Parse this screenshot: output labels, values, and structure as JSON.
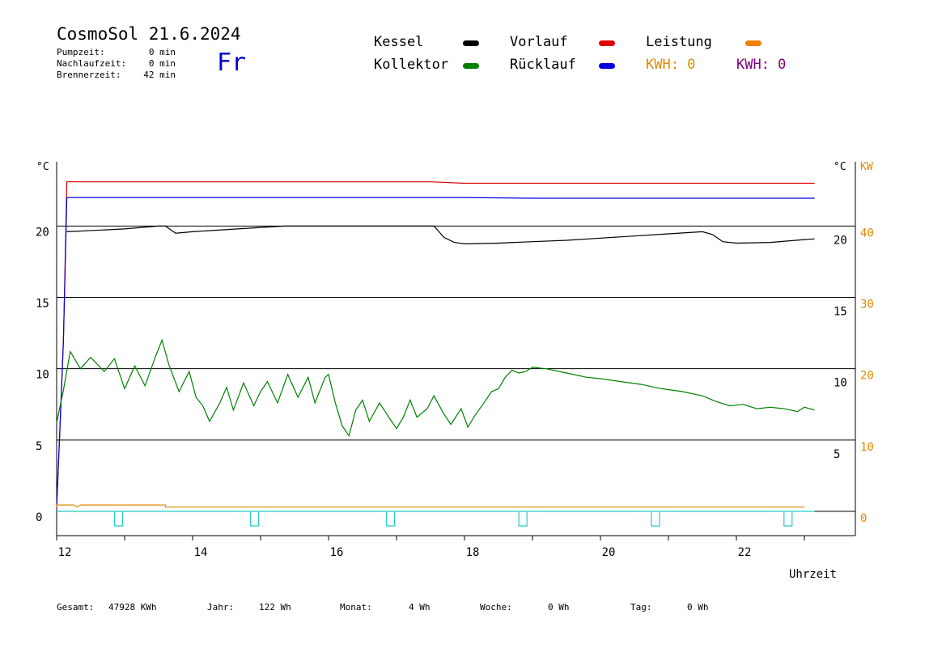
{
  "header": {
    "title": "CosmoSol 21.6.2024",
    "weekday": "Fr",
    "stats": [
      {
        "label": "Pumpzeit:",
        "value": "0 min"
      },
      {
        "label": "Nachlaufzeit:",
        "value": "0 min"
      },
      {
        "label": "Brennerzeit:",
        "value": "42 min"
      }
    ]
  },
  "legend": {
    "kessel": {
      "label": "Kessel",
      "color": "#000000"
    },
    "kollektor": {
      "label": "Kollektor",
      "color": "#008000"
    },
    "vorlauf": {
      "label": "Vorlauf",
      "color": "#e00000"
    },
    "ruecklauf": {
      "label": "Rücklauf",
      "color": "#0000e0"
    },
    "leistung": {
      "label": "Leistung",
      "color": "#f08000"
    },
    "kwh_orange": {
      "label": "KWH: 0",
      "color": "#e08a00"
    },
    "kwh_purple": {
      "label": "KWH: 0",
      "color": "#800080"
    }
  },
  "footer": [
    {
      "label": "Gesamt:",
      "value": "47928 KWh"
    },
    {
      "label": "Jahr:",
      "value": "122 Wh"
    },
    {
      "label": "Monat:",
      "value": "4 Wh"
    },
    {
      "label": "Woche:",
      "value": "0 Wh"
    },
    {
      "label": "Tag:",
      "value": "0 Wh"
    }
  ],
  "chart_data": {
    "type": "line",
    "xlabel": "Uhrzeit",
    "left_unit": "°C",
    "right_unit": "°C",
    "power_unit": "KW",
    "xlim": [
      12,
      23.75
    ],
    "ylim": [
      -1.7,
      24.5
    ],
    "x_ticks": [
      "12",
      "14",
      "16",
      "18",
      "20",
      "22"
    ],
    "y_ticks_left": [
      "0",
      "5",
      "10",
      "15",
      "20"
    ],
    "y_ticks_right": [
      "5",
      "10",
      "15",
      "20"
    ],
    "y_ticks_power": [
      "0",
      "10",
      "20",
      "30",
      "40"
    ],
    "grid": true,
    "series": [
      {
        "name": "Vorlauf",
        "color": "#e00000",
        "points": [
          [
            12.0,
            0.3
          ],
          [
            12.05,
            6
          ],
          [
            12.1,
            12
          ],
          [
            12.15,
            23.1
          ],
          [
            14,
            23.1
          ],
          [
            16,
            23.1
          ],
          [
            17.5,
            23.1
          ],
          [
            18,
            23.0
          ],
          [
            19,
            23.0
          ],
          [
            20,
            23.0
          ],
          [
            21,
            23.0
          ],
          [
            22,
            23.0
          ],
          [
            23.15,
            23.0
          ]
        ]
      },
      {
        "name": "Rücklauf",
        "color": "#0000e0",
        "points": [
          [
            12.0,
            0.3
          ],
          [
            12.05,
            6
          ],
          [
            12.1,
            12
          ],
          [
            12.15,
            22.0
          ],
          [
            14,
            22.0
          ],
          [
            15.1,
            22.0
          ],
          [
            16,
            22.0
          ],
          [
            17,
            22.0
          ],
          [
            18,
            22.0
          ],
          [
            19,
            21.95
          ],
          [
            20,
            21.95
          ],
          [
            21,
            21.95
          ],
          [
            22,
            21.95
          ],
          [
            23.15,
            21.95
          ]
        ]
      },
      {
        "name": "Kessel",
        "color": "#000000",
        "points": [
          [
            12.15,
            19.6
          ],
          [
            13,
            19.8
          ],
          [
            13.5,
            20.0
          ],
          [
            13.6,
            20.0
          ],
          [
            13.75,
            19.5
          ],
          [
            14.0,
            19.6
          ],
          [
            15.0,
            19.9
          ],
          [
            15.35,
            20.0
          ],
          [
            17.55,
            20.0
          ],
          [
            17.7,
            19.2
          ],
          [
            17.85,
            18.85
          ],
          [
            18.0,
            18.75
          ],
          [
            18.5,
            18.8
          ],
          [
            19.0,
            18.9
          ],
          [
            19.5,
            19.0
          ],
          [
            20.0,
            19.15
          ],
          [
            20.5,
            19.3
          ],
          [
            21.0,
            19.45
          ],
          [
            21.5,
            19.6
          ],
          [
            21.65,
            19.4
          ],
          [
            21.8,
            18.9
          ],
          [
            22.0,
            18.8
          ],
          [
            22.5,
            18.85
          ],
          [
            23.0,
            19.05
          ],
          [
            23.15,
            19.1
          ]
        ]
      },
      {
        "name": "Kollektor",
        "color": "#008000",
        "points": [
          [
            12.0,
            6.2
          ],
          [
            12.1,
            8.5
          ],
          [
            12.2,
            11.2
          ],
          [
            12.35,
            10.0
          ],
          [
            12.5,
            10.8
          ],
          [
            12.7,
            9.8
          ],
          [
            12.85,
            10.7
          ],
          [
            13.0,
            8.6
          ],
          [
            13.15,
            10.2
          ],
          [
            13.3,
            8.8
          ],
          [
            13.45,
            10.8
          ],
          [
            13.55,
            12.0
          ],
          [
            13.65,
            10.3
          ],
          [
            13.8,
            8.4
          ],
          [
            13.95,
            9.8
          ],
          [
            14.05,
            8.0
          ],
          [
            14.15,
            7.4
          ],
          [
            14.25,
            6.3
          ],
          [
            14.4,
            7.6
          ],
          [
            14.5,
            8.7
          ],
          [
            14.6,
            7.1
          ],
          [
            14.75,
            9.0
          ],
          [
            14.9,
            7.4
          ],
          [
            15.0,
            8.4
          ],
          [
            15.1,
            9.1
          ],
          [
            15.25,
            7.6
          ],
          [
            15.4,
            9.6
          ],
          [
            15.55,
            8.0
          ],
          [
            15.7,
            9.4
          ],
          [
            15.8,
            7.6
          ],
          [
            15.95,
            9.4
          ],
          [
            16.0,
            9.6
          ],
          [
            16.1,
            7.6
          ],
          [
            16.2,
            6.0
          ],
          [
            16.3,
            5.3
          ],
          [
            16.4,
            7.1
          ],
          [
            16.5,
            7.8
          ],
          [
            16.6,
            6.3
          ],
          [
            16.75,
            7.6
          ],
          [
            16.9,
            6.5
          ],
          [
            17.0,
            5.8
          ],
          [
            17.1,
            6.6
          ],
          [
            17.2,
            7.8
          ],
          [
            17.3,
            6.6
          ],
          [
            17.45,
            7.2
          ],
          [
            17.55,
            8.1
          ],
          [
            17.7,
            6.8
          ],
          [
            17.8,
            6.1
          ],
          [
            17.95,
            7.2
          ],
          [
            18.05,
            5.9
          ],
          [
            18.15,
            6.7
          ],
          [
            18.3,
            7.7
          ],
          [
            18.4,
            8.4
          ],
          [
            18.5,
            8.6
          ],
          [
            18.6,
            9.4
          ],
          [
            18.7,
            9.9
          ],
          [
            18.8,
            9.7
          ],
          [
            18.9,
            9.8
          ],
          [
            19.0,
            10.1
          ],
          [
            19.2,
            10.0
          ],
          [
            19.5,
            9.7
          ],
          [
            19.8,
            9.4
          ],
          [
            20.0,
            9.3
          ],
          [
            20.3,
            9.1
          ],
          [
            20.6,
            8.9
          ],
          [
            20.9,
            8.6
          ],
          [
            21.2,
            8.4
          ],
          [
            21.5,
            8.1
          ],
          [
            21.7,
            7.7
          ],
          [
            21.9,
            7.4
          ],
          [
            22.1,
            7.5
          ],
          [
            22.3,
            7.2
          ],
          [
            22.5,
            7.3
          ],
          [
            22.7,
            7.2
          ],
          [
            22.9,
            7.0
          ],
          [
            23.0,
            7.3
          ],
          [
            23.15,
            7.1
          ]
        ]
      },
      {
        "name": "Leistung",
        "color": "#e08a00",
        "points": [
          [
            12.0,
            0.3
          ],
          [
            12.0,
            0.45
          ],
          [
            12.25,
            0.45
          ],
          [
            12.3,
            0.3
          ],
          [
            12.35,
            0.45
          ],
          [
            13.6,
            0.45
          ],
          [
            13.6,
            0.3
          ],
          [
            23.0,
            0.3
          ]
        ]
      }
    ],
    "pump_marker_positions": [
      12.85,
      14.85,
      16.85,
      18.8,
      20.75,
      22.7
    ]
  }
}
